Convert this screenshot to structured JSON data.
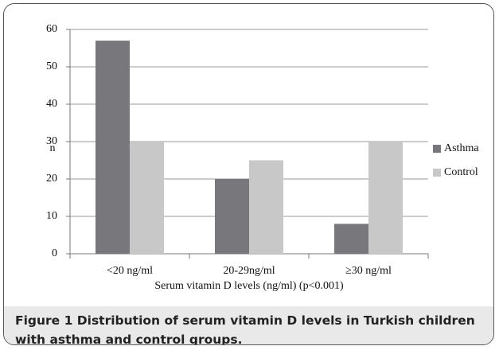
{
  "chart_data": {
    "type": "bar",
    "caption": "Figure 1 Distribution of serum vitamin D levels in Turkish children with asthma and control groups.",
    "y_label": "n",
    "x_label": "Serum vitamin D levels (ng/ml) (p<0.001)",
    "categories": [
      "<20 ng/ml",
      "20-29ng/ml",
      "≥30 ng/ml"
    ],
    "series": [
      {
        "name": "Asthma",
        "color": "#78777b",
        "values": [
          57,
          20,
          8
        ]
      },
      {
        "name": "Control",
        "color": "#c8c8c8",
        "values": [
          30,
          25,
          30
        ]
      }
    ],
    "ylim": [
      0,
      60
    ],
    "yticks": [
      0,
      10,
      20,
      30,
      40,
      50,
      60
    ],
    "grid": true,
    "legend": "right"
  }
}
